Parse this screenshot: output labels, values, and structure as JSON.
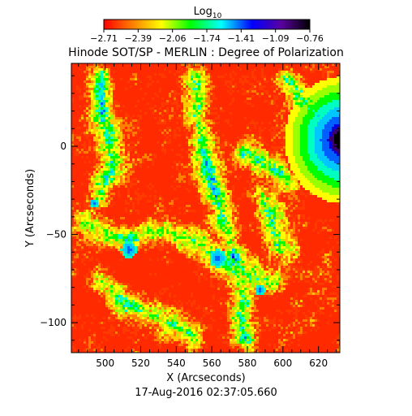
{
  "chart_data": {
    "type": "heatmap",
    "title": "Hinode SOT/SP - MERLIN : Degree of Polarization",
    "colorbar": {
      "label_base": "Log",
      "label_sub": "10",
      "ticks": [
        "-2.71",
        "-2.39",
        "-2.06",
        "-1.74",
        "-1.41",
        "-1.09",
        "-0.76"
      ],
      "range": [
        -2.71,
        -0.76
      ],
      "colors": [
        "#ff0000",
        "#ff7f00",
        "#ffff00",
        "#00ff00",
        "#00ffff",
        "#0000ff",
        "#5a00a0",
        "#000000"
      ]
    },
    "xlabel": "X (Arcseconds)",
    "ylabel": "Y (Arcseconds)",
    "xlim": [
      481,
      632
    ],
    "ylim": [
      -117,
      47
    ],
    "xticks": [
      500,
      520,
      540,
      560,
      580,
      600,
      620
    ],
    "yticks": [
      0,
      -50,
      -100
    ],
    "footer": "17-Aug-2016 02:37:05.660"
  }
}
